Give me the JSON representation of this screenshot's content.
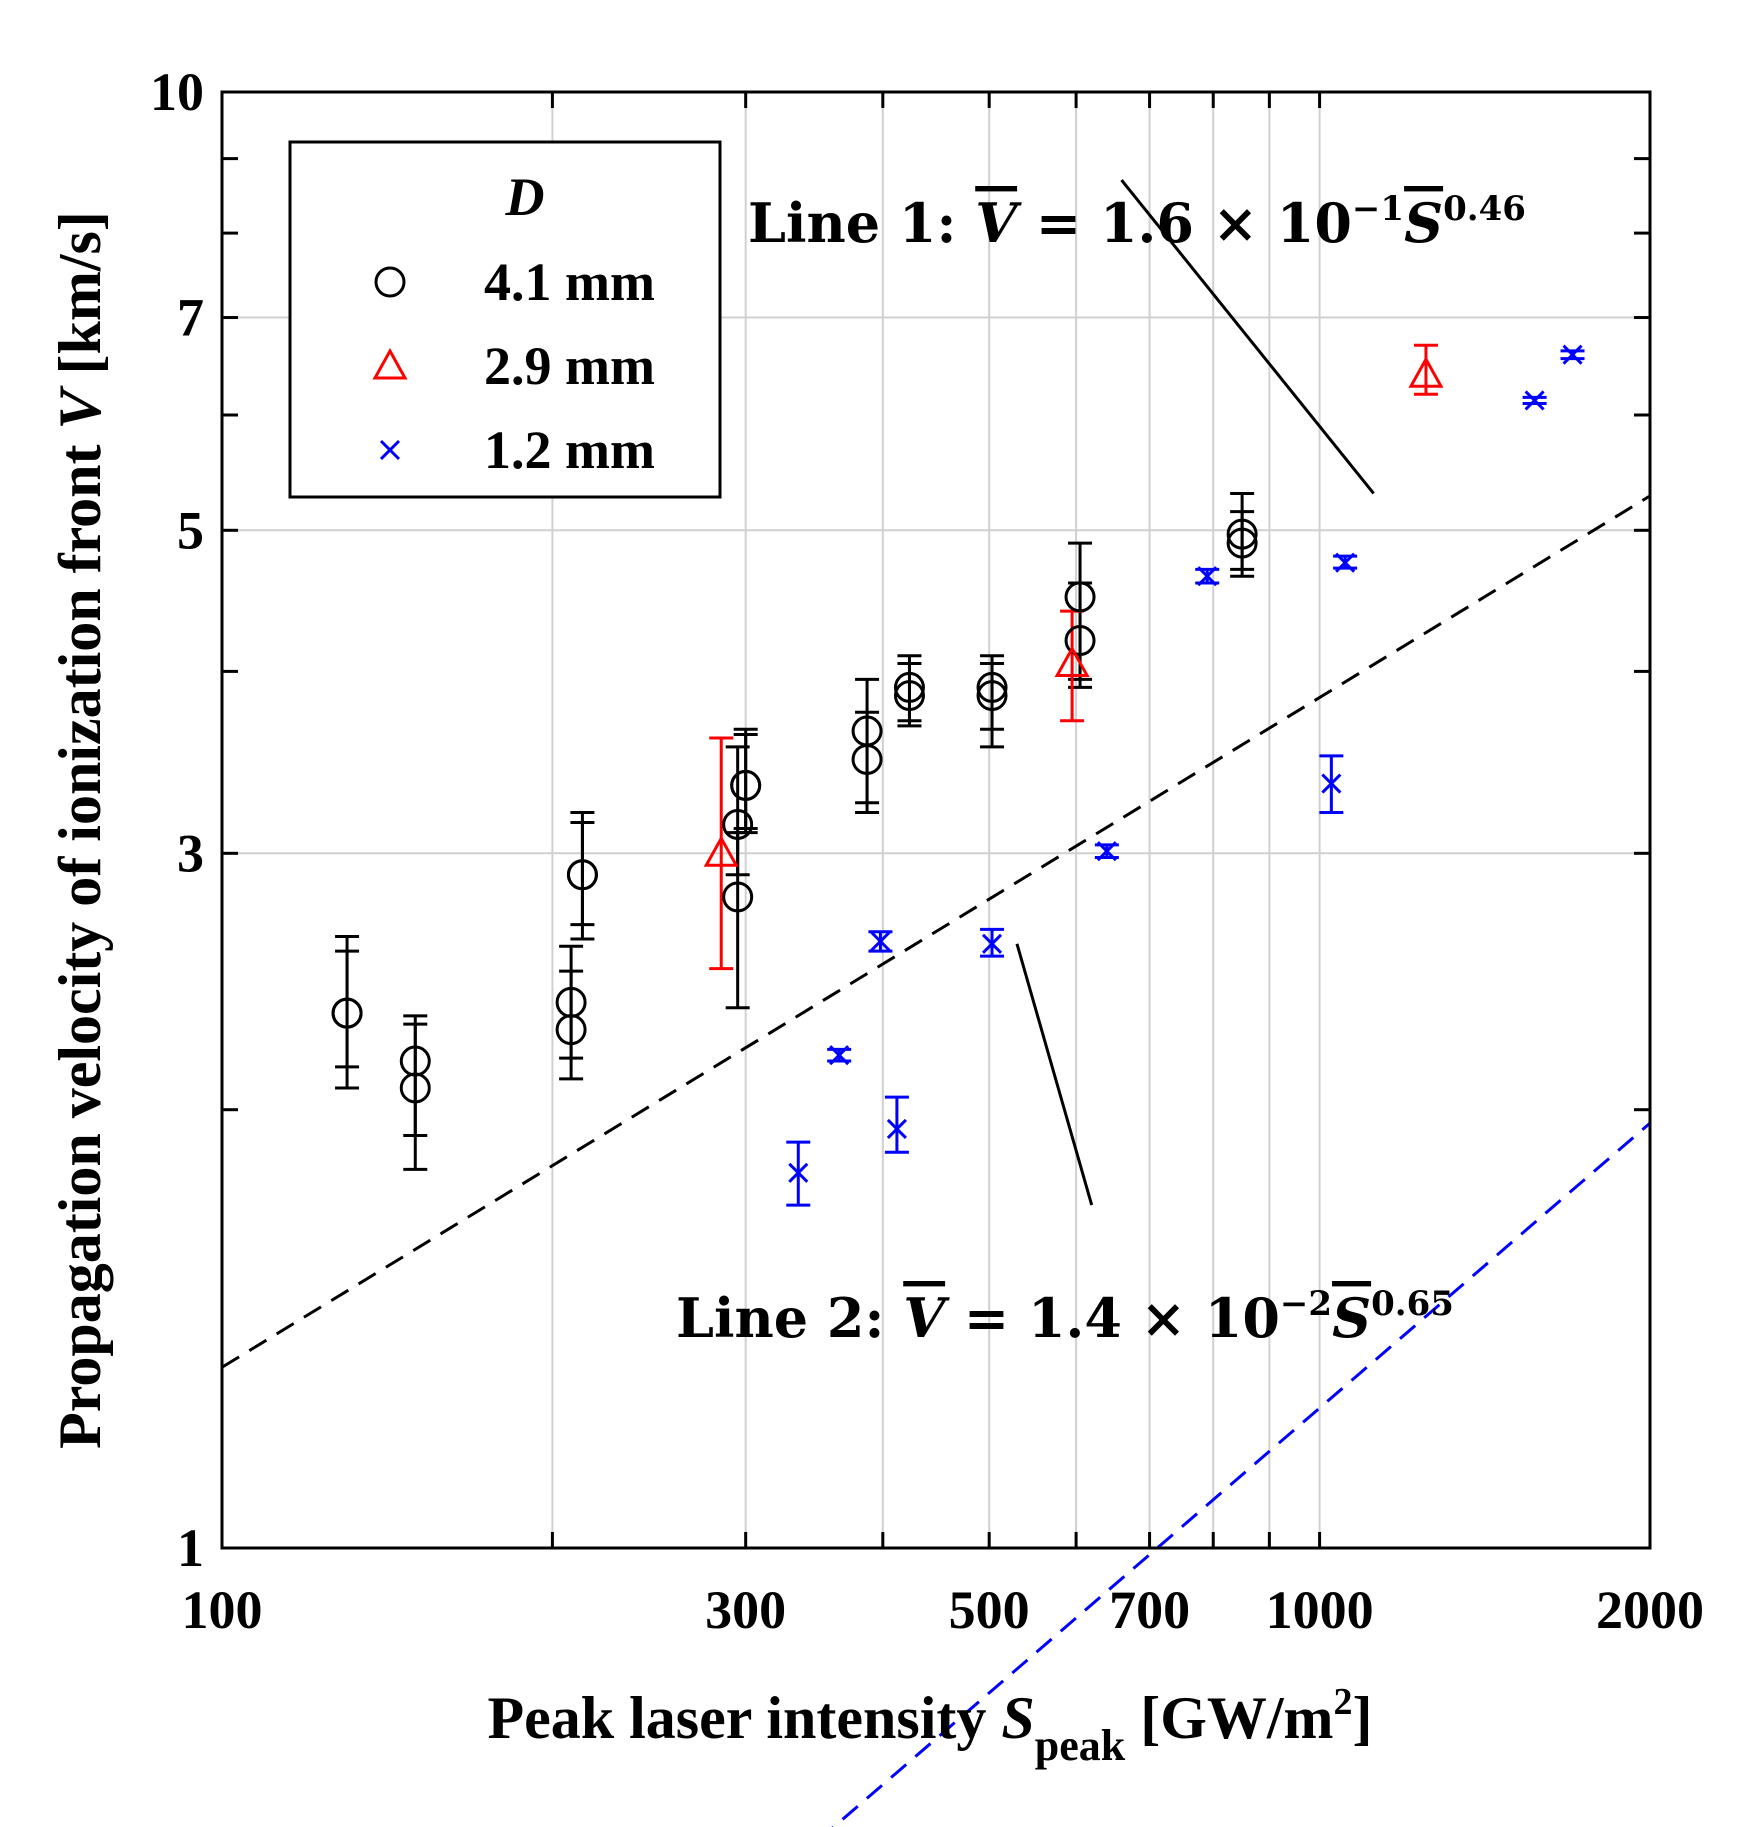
{
  "chart_data": {
    "type": "scatter",
    "title": "",
    "xlabel": "Peak laser intensity",
    "xlabel_symbol": "S",
    "xlabel_sub": "peak",
    "xlabel_unit_open": "[GW/m",
    "xlabel_unit_sup": "2",
    "xlabel_unit_close": "]",
    "ylabel": "Propagation velocity of ionization front",
    "ylabel_symbol": "V",
    "ylabel_unit": "[km/s]",
    "xscale": "log",
    "yscale": "log",
    "xlim": [
      100,
      2000
    ],
    "ylim": [
      1,
      10
    ],
    "xticks": [
      100,
      300,
      500,
      700,
      1000,
      2000
    ],
    "xtick_labels": [
      "100",
      "300",
      "500",
      "700",
      "1000",
      "2000"
    ],
    "xgrid": [
      200,
      300,
      400,
      500,
      600,
      700,
      800,
      900,
      1000
    ],
    "yticks": [
      1,
      3,
      5,
      7,
      10
    ],
    "ytick_labels": [
      "1",
      "3",
      "5",
      "7",
      "10"
    ],
    "ygrid": [
      3,
      5,
      7
    ],
    "grid": true,
    "legend": {
      "title": "D",
      "position": "top-left",
      "entries": [
        {
          "label": "4.1 mm",
          "marker": "circle",
          "color": "#000000"
        },
        {
          "label": "2.9 mm",
          "marker": "triangle",
          "color": "#ff0000"
        },
        {
          "label": "1.2 mm",
          "marker": "x",
          "color": "#0000ff"
        }
      ]
    },
    "series": [
      {
        "name": "4.1 mm",
        "marker": "circle",
        "color": "#000000",
        "points": [
          {
            "x": 130,
            "y": 2.33,
            "lo": 2.07,
            "hi": 2.63
          },
          {
            "x": 130,
            "y": 2.33,
            "lo": 2.14,
            "hi": 2.57
          },
          {
            "x": 150,
            "y": 2.16,
            "lo": 1.82,
            "hi": 2.29
          },
          {
            "x": 150,
            "y": 2.07,
            "lo": 1.92,
            "hi": 2.32
          },
          {
            "x": 208,
            "y": 2.37,
            "lo": 2.17,
            "hi": 2.59
          },
          {
            "x": 208,
            "y": 2.27,
            "lo": 2.1,
            "hi": 2.49
          },
          {
            "x": 213,
            "y": 2.9,
            "lo": 2.62,
            "hi": 3.2
          },
          {
            "x": 213,
            "y": 2.9,
            "lo": 2.68,
            "hi": 3.15
          },
          {
            "x": 295,
            "y": 2.8,
            "lo": 2.35,
            "hi": 3.1
          },
          {
            "x": 295,
            "y": 3.14,
            "lo": 2.9,
            "hi": 3.55
          },
          {
            "x": 300,
            "y": 3.34,
            "lo": 3.1,
            "hi": 3.65
          },
          {
            "x": 300,
            "y": 3.34,
            "lo": 3.12,
            "hi": 3.62
          },
          {
            "x": 387,
            "y": 3.64,
            "lo": 3.2,
            "hi": 3.95
          },
          {
            "x": 387,
            "y": 3.48,
            "lo": 3.25,
            "hi": 3.75
          },
          {
            "x": 423,
            "y": 3.85,
            "lo": 3.67,
            "hi": 4.1
          },
          {
            "x": 423,
            "y": 3.9,
            "lo": 3.7,
            "hi": 4.05
          },
          {
            "x": 503,
            "y": 3.85,
            "lo": 3.55,
            "hi": 4.1
          },
          {
            "x": 503,
            "y": 3.9,
            "lo": 3.65,
            "hi": 4.05
          },
          {
            "x": 605,
            "y": 4.5,
            "lo": 3.95,
            "hi": 4.9
          },
          {
            "x": 605,
            "y": 4.2,
            "lo": 3.9,
            "hi": 4.6
          },
          {
            "x": 850,
            "y": 4.97,
            "lo": 4.65,
            "hi": 5.3
          },
          {
            "x": 850,
            "y": 4.9,
            "lo": 4.7,
            "hi": 5.15
          }
        ]
      },
      {
        "name": "2.9 mm",
        "marker": "triangle",
        "color": "#ff0000",
        "points": [
          {
            "x": 285,
            "y": 3.0,
            "lo": 2.5,
            "hi": 3.6
          },
          {
            "x": 595,
            "y": 4.05,
            "lo": 3.7,
            "hi": 4.4
          },
          {
            "x": 1250,
            "y": 6.4,
            "lo": 6.2,
            "hi": 6.7
          }
        ]
      },
      {
        "name": "1.2 mm",
        "marker": "x",
        "color": "#0000ff",
        "points": [
          {
            "x": 335,
            "y": 1.81,
            "lo": 1.72,
            "hi": 1.9
          },
          {
            "x": 365,
            "y": 2.18,
            "lo": 2.16,
            "hi": 2.2
          },
          {
            "x": 398,
            "y": 2.61,
            "lo": 2.57,
            "hi": 2.65
          },
          {
            "x": 412,
            "y": 1.94,
            "lo": 1.87,
            "hi": 2.04
          },
          {
            "x": 503,
            "y": 2.6,
            "lo": 2.55,
            "hi": 2.66
          },
          {
            "x": 640,
            "y": 3.01,
            "lo": 2.98,
            "hi": 3.04
          },
          {
            "x": 790,
            "y": 4.65,
            "lo": 4.6,
            "hi": 4.7
          },
          {
            "x": 1025,
            "y": 3.35,
            "lo": 3.2,
            "hi": 3.5
          },
          {
            "x": 1055,
            "y": 4.75,
            "lo": 4.71,
            "hi": 4.8
          },
          {
            "x": 1570,
            "y": 6.14,
            "lo": 6.11,
            "hi": 6.17
          },
          {
            "x": 1700,
            "y": 6.6,
            "lo": 6.56,
            "hi": 6.64
          }
        ]
      }
    ],
    "fits": [
      {
        "name": "Line 1",
        "color": "#000000",
        "coef": 0.16,
        "exponent": 0.46,
        "x_range": [
          100,
          2000
        ],
        "label_prefix": "Line 1",
        "label_mid": " = 1.6 × 10",
        "label_exp": "−1",
        "label_pow": "0.46",
        "pointer_from_x": 660,
        "pointer_from_y": 8.7,
        "pointer_to_x": 1120,
        "pointer_to_y": 5.3
      },
      {
        "name": "Line 2",
        "color": "#0000ff",
        "coef": 0.014,
        "exponent": 0.65,
        "x_range": [
          300,
          2000
        ],
        "label_prefix": "Line 2",
        "label_mid": " = 1.4 × 10",
        "label_exp": "−2",
        "label_pow": "0.65",
        "pointer_from_x": 620,
        "pointer_from_y": 1.72,
        "pointer_to_x": 530,
        "pointer_to_y": 2.6
      }
    ]
  }
}
